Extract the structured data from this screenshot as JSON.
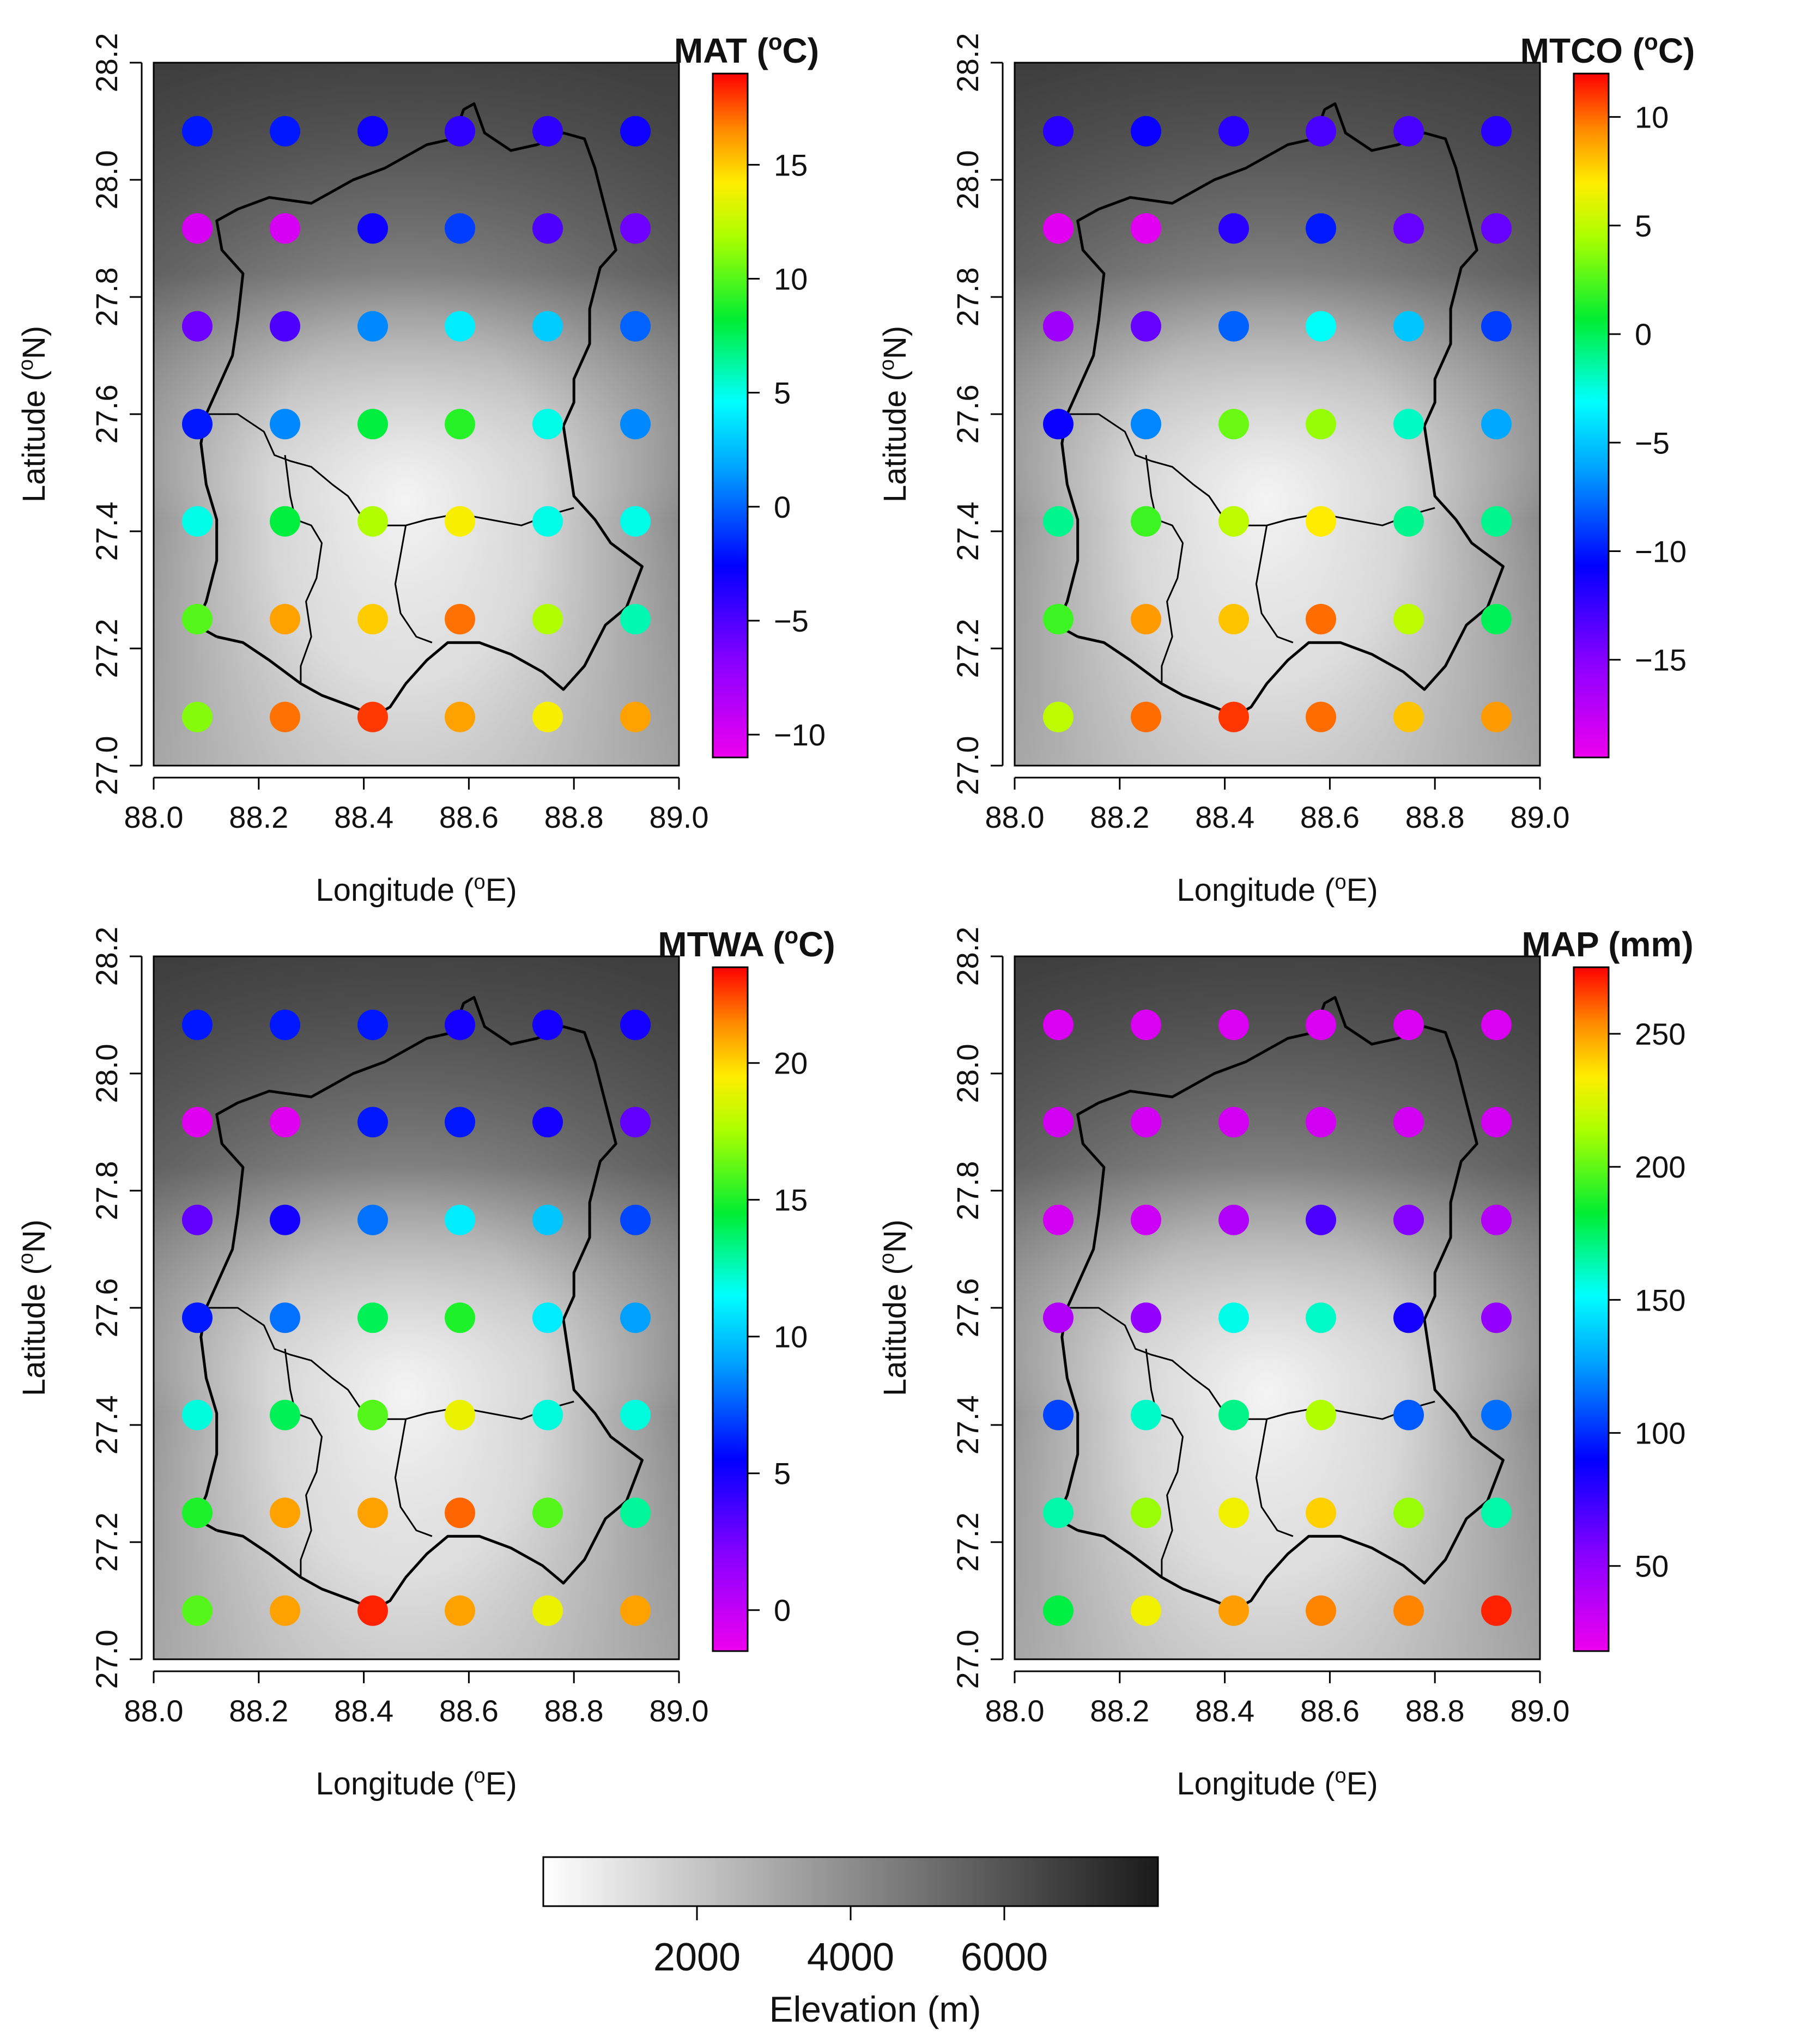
{
  "chart_data": [
    {
      "type": "scatter",
      "title": "MAT (°C)",
      "title_main": "MAT (",
      "title_sup": "o",
      "title_end": "C)",
      "xlabel": "Longitude (°E)",
      "ylabel": "Latitude (°N)",
      "xlim": [
        88.0,
        89.0
      ],
      "ylim": [
        27.0,
        28.2
      ],
      "x_ticks": [
        "88.0",
        "88.2",
        "88.4",
        "88.6",
        "88.8",
        "89.0"
      ],
      "y_ticks": [
        "27.0",
        "27.2",
        "27.4",
        "27.6",
        "27.8",
        "28.0",
        "28.2"
      ],
      "lon": [
        88.083,
        88.25,
        88.417,
        88.583,
        88.75,
        88.917
      ],
      "lat": [
        28.083,
        27.917,
        27.75,
        27.583,
        27.417,
        27.25,
        27.083
      ],
      "color_range": [
        -11,
        19
      ],
      "colorbar_ticks": [
        15,
        10,
        5,
        0,
        -5,
        -10
      ],
      "colorbar_labels": [
        "15",
        "10",
        "5",
        "0",
        "−5",
        "−10"
      ],
      "values": [
        [
          -2,
          -2,
          -3,
          -4,
          -4,
          -3
        ],
        [
          -10,
          -10,
          -3,
          -1,
          -5,
          -6
        ],
        [
          -6,
          -5,
          1,
          4,
          3,
          0
        ],
        [
          -2,
          1,
          8,
          9,
          5,
          1
        ],
        [
          5,
          8,
          12,
          14,
          5,
          5
        ],
        [
          10,
          16,
          15,
          17,
          12,
          6
        ],
        [
          11,
          17,
          18,
          16,
          14,
          16
        ]
      ]
    },
    {
      "type": "scatter",
      "title": "MTCO (°C)",
      "title_main": "MTCO (",
      "title_sup": "o",
      "title_end": "C)",
      "xlabel": "Longitude (°E)",
      "ylabel": "Latitude (°N)",
      "xlim": [
        88.0,
        89.0
      ],
      "ylim": [
        27.0,
        28.2
      ],
      "x_ticks": [
        "88.0",
        "88.2",
        "88.4",
        "88.6",
        "88.8",
        "89.0"
      ],
      "y_ticks": [
        "27.0",
        "27.2",
        "27.4",
        "27.6",
        "27.8",
        "28.0",
        "28.2"
      ],
      "lon": [
        88.083,
        88.25,
        88.417,
        88.583,
        88.75,
        88.917
      ],
      "lat": [
        28.083,
        27.917,
        27.75,
        27.583,
        27.417,
        27.25,
        27.083
      ],
      "color_range": [
        -19.5,
        12
      ],
      "colorbar_ticks": [
        10,
        5,
        0,
        -5,
        -10,
        -15
      ],
      "colorbar_labels": [
        "10",
        "5",
        "0",
        "−5",
        "−10",
        "−15"
      ],
      "values": [
        [
          -12,
          -11,
          -12,
          -13,
          -13,
          -12
        ],
        [
          -19,
          -19,
          -12,
          -10,
          -14,
          -14
        ],
        [
          -16,
          -14,
          -8,
          -3,
          -5,
          -9
        ],
        [
          -11,
          -7,
          3,
          4,
          -2,
          -6
        ],
        [
          -1,
          2,
          5,
          7,
          -1,
          -1
        ],
        [
          2,
          9,
          8,
          10,
          5,
          0
        ],
        [
          5,
          10,
          11,
          10,
          8,
          9
        ]
      ]
    },
    {
      "type": "scatter",
      "title": "MTWA (°C)",
      "title_main": "MTWA (",
      "title_sup": "o",
      "title_end": "C)",
      "xlabel": "Longitude (°E)",
      "ylabel": "Latitude (°N)",
      "xlim": [
        88.0,
        89.0
      ],
      "ylim": [
        27.0,
        28.2
      ],
      "x_ticks": [
        "88.0",
        "88.2",
        "88.4",
        "88.6",
        "88.8",
        "89.0"
      ],
      "y_ticks": [
        "27.0",
        "27.2",
        "27.4",
        "27.6",
        "27.8",
        "28.0",
        "28.2"
      ],
      "lon": [
        88.083,
        88.25,
        88.417,
        88.583,
        88.75,
        88.917
      ],
      "lat": [
        28.083,
        27.917,
        27.75,
        27.583,
        27.417,
        27.25,
        27.083
      ],
      "color_range": [
        -1.5,
        23.5
      ],
      "colorbar_ticks": [
        20,
        15,
        10,
        5,
        0
      ],
      "colorbar_labels": [
        "20",
        "15",
        "10",
        "5",
        "0"
      ],
      "values": [
        [
          6,
          6,
          6,
          5,
          5,
          5
        ],
        [
          -1,
          -1,
          6,
          6,
          5,
          3
        ],
        [
          3,
          5,
          8,
          11,
          10,
          7
        ],
        [
          6,
          8,
          14,
          15,
          11,
          9
        ],
        [
          12,
          14,
          16,
          19,
          12,
          12
        ],
        [
          15,
          21,
          21,
          22,
          16,
          13
        ],
        [
          16,
          21,
          23,
          21,
          19,
          21
        ]
      ]
    },
    {
      "type": "scatter",
      "title": "MAP (mm)",
      "title_main": "MAP (mm)",
      "title_sup": "",
      "title_end": "",
      "xlabel": "Longitude (°E)",
      "ylabel": "Latitude (°N)",
      "xlim": [
        88.0,
        89.0
      ],
      "ylim": [
        27.0,
        28.2
      ],
      "x_ticks": [
        "88.0",
        "88.2",
        "88.4",
        "88.6",
        "88.8",
        "89.0"
      ],
      "y_ticks": [
        "27.0",
        "27.2",
        "27.4",
        "27.6",
        "27.8",
        "28.0",
        "28.2"
      ],
      "lon": [
        88.083,
        88.25,
        88.417,
        88.583,
        88.75,
        88.917
      ],
      "lat": [
        28.083,
        27.917,
        27.75,
        27.583,
        27.417,
        27.25,
        27.083
      ],
      "color_range": [
        18,
        275
      ],
      "colorbar_ticks": [
        250,
        200,
        150,
        100,
        50
      ],
      "colorbar_labels": [
        "250",
        "200",
        "150",
        "100",
        "50"
      ],
      "values": [
        [
          25,
          25,
          25,
          25,
          25,
          25
        ],
        [
          28,
          28,
          28,
          28,
          28,
          28
        ],
        [
          28,
          30,
          40,
          70,
          55,
          38
        ],
        [
          40,
          50,
          155,
          160,
          85,
          50
        ],
        [
          105,
          160,
          170,
          215,
          110,
          115
        ],
        [
          165,
          210,
          230,
          240,
          210,
          165
        ],
        [
          180,
          230,
          250,
          255,
          255,
          270
        ]
      ]
    }
  ],
  "elevation_legend": {
    "title": "Elevation (m)",
    "range": [
      0,
      8000
    ],
    "ticks": [
      "2000",
      "4000",
      "6000"
    ]
  }
}
